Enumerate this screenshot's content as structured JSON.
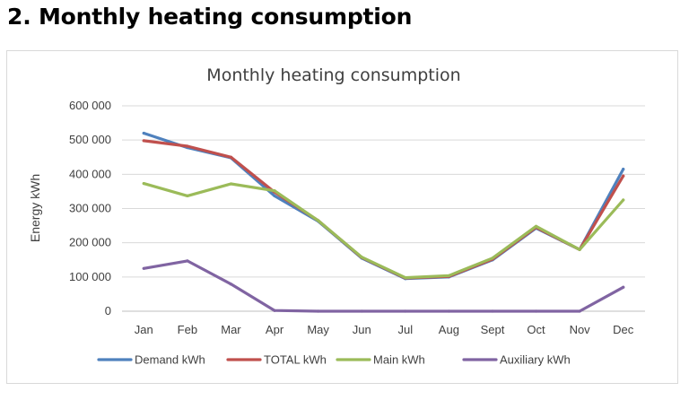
{
  "page": {
    "heading": "2. Monthly heating consumption"
  },
  "chart_data": {
    "type": "line",
    "title": "Monthly heating  consumption",
    "xlabel": "",
    "ylabel": "Energy kWh",
    "ylim": [
      0,
      600000
    ],
    "yticks": [
      0,
      100000,
      200000,
      300000,
      400000,
      500000,
      600000
    ],
    "ytick_labels": [
      "0",
      "100 000",
      "200 000",
      "300 000",
      "400 000",
      "500 000",
      "600 000"
    ],
    "grid": true,
    "legend_position": "bottom",
    "categories": [
      "Jan",
      "Feb",
      "Mar",
      "Apr",
      "May",
      "Jun",
      "Jul",
      "Aug",
      "Sept",
      "Oct",
      "Nov",
      "Dec"
    ],
    "series": [
      {
        "name": "Demand kWh",
        "color": "#4f81bd",
        "values": [
          520000,
          478000,
          448000,
          337000,
          263000,
          155000,
          95000,
          100000,
          150000,
          243000,
          180000,
          415000
        ]
      },
      {
        "name": "TOTAL kWh",
        "color": "#c0504d",
        "values": [
          498000,
          482000,
          450000,
          348000,
          265000,
          157000,
          97000,
          102000,
          152000,
          245000,
          180000,
          395000
        ]
      },
      {
        "name": "Main  kWh",
        "color": "#9bbb59",
        "values": [
          373000,
          337000,
          372000,
          352000,
          265000,
          158000,
          98000,
          104000,
          155000,
          248000,
          180000,
          325000
        ]
      },
      {
        "name": "Auxiliary kWh",
        "color": "#8064a2",
        "values": [
          125000,
          147000,
          79000,
          2000,
          0,
          0,
          0,
          0,
          0,
          0,
          0,
          70000
        ]
      }
    ]
  }
}
